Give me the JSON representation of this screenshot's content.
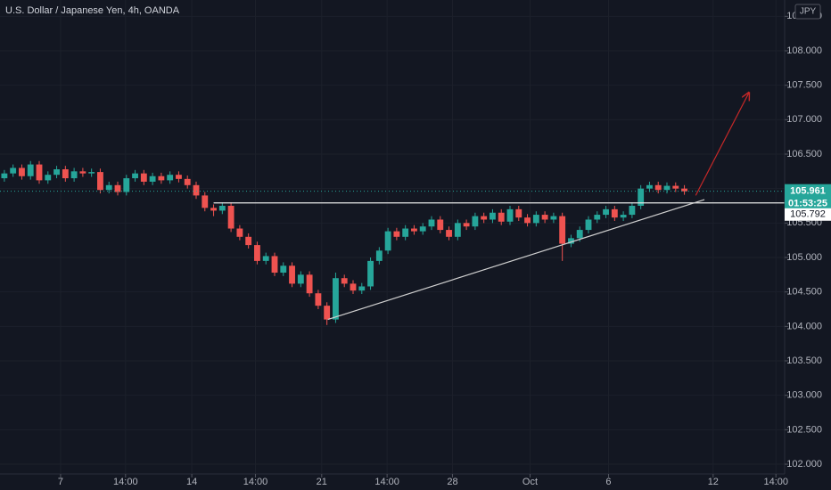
{
  "chart_data": {
    "type": "candlestick",
    "title": "U.S. Dollar / Japanese Yen, 4h, OANDA",
    "currency": "JPY",
    "up_color": "#26a69a",
    "down_color": "#ef5350",
    "grid": true,
    "xlim": [
      -0.5,
      89.5
    ],
    "xticks": [
      {
        "value": 6.45,
        "label": "7"
      },
      {
        "value": 13.9,
        "label": "14:00"
      },
      {
        "value": 21.5,
        "label": "14"
      },
      {
        "value": 28.8,
        "label": "14:00"
      },
      {
        "value": 36.4,
        "label": "21"
      },
      {
        "value": 43.9,
        "label": "14:00"
      },
      {
        "value": 51.4,
        "label": "28"
      },
      {
        "value": 60.3,
        "label": "Oct"
      },
      {
        "value": 69.3,
        "label": "6"
      },
      {
        "value": 81.3,
        "label": "12"
      },
      {
        "value": 88.5,
        "label": "14:00"
      }
    ],
    "ylim": [
      101.858,
      108.737
    ],
    "yticks": [
      {
        "value": 102,
        "label": "102.000"
      },
      {
        "value": 102.5,
        "label": "102.500"
      },
      {
        "value": 103,
        "label": "103.000"
      },
      {
        "value": 103.5,
        "label": "103.500"
      },
      {
        "value": 104,
        "label": "104.000"
      },
      {
        "value": 104.5,
        "label": "104.500"
      },
      {
        "value": 105,
        "label": "105.000"
      },
      {
        "value": 105.5,
        "label": "105.500"
      },
      {
        "value": 106,
        "label": "106.000"
      },
      {
        "value": 106.5,
        "label": "106.500"
      },
      {
        "value": 107,
        "label": "107.000"
      },
      {
        "value": 107.5,
        "label": "107.500"
      },
      {
        "value": 108,
        "label": "108.000"
      },
      {
        "value": 108.5,
        "label": "108.500"
      }
    ],
    "open": [
      106.15,
      106.22,
      106.3,
      106.18,
      106.35,
      106.12,
      106.2,
      106.28,
      106.15,
      106.25,
      106.22,
      106.24,
      105.98,
      106.05,
      105.95,
      106.15,
      106.22,
      106.1,
      106.18,
      106.12,
      106.2,
      106.14,
      106.05,
      105.9,
      105.72,
      105.68,
      105.75,
      105.42,
      105.3,
      105.18,
      104.95,
      105.02,
      104.78,
      104.88,
      104.62,
      104.75,
      104.48,
      104.3,
      104.1,
      104.7,
      104.62,
      104.52,
      104.58,
      104.95,
      105.1,
      105.38,
      105.3,
      105.42,
      105.38,
      105.45,
      105.55,
      105.4,
      105.3,
      105.5,
      105.45,
      105.6,
      105.55,
      105.65,
      105.52,
      105.7,
      105.58,
      105.5,
      105.62,
      105.55,
      105.6,
      105.2,
      105.28,
      105.4,
      105.55,
      105.62,
      105.7,
      105.58,
      105.62,
      105.75,
      106.0,
      106.05,
      105.98,
      106.04,
      106.0
    ],
    "high": [
      106.27,
      106.35,
      106.35,
      106.4,
      106.4,
      106.25,
      106.33,
      106.33,
      106.3,
      106.3,
      106.29,
      106.29,
      106.1,
      106.1,
      106.2,
      106.27,
      106.27,
      106.23,
      106.23,
      106.25,
      106.25,
      106.19,
      106.1,
      105.95,
      105.77,
      105.8,
      105.8,
      105.47,
      105.35,
      105.23,
      105.07,
      105.07,
      104.93,
      104.93,
      104.8,
      104.8,
      104.53,
      104.35,
      104.78,
      104.75,
      104.67,
      104.63,
      105.0,
      105.15,
      105.43,
      105.43,
      105.47,
      105.47,
      105.5,
      105.6,
      105.6,
      105.45,
      105.55,
      105.55,
      105.65,
      105.65,
      105.7,
      105.7,
      105.75,
      105.75,
      105.63,
      105.67,
      105.67,
      105.65,
      105.65,
      105.33,
      105.45,
      105.6,
      105.67,
      105.75,
      105.75,
      105.67,
      105.8,
      106.05,
      106.1,
      106.1,
      106.09,
      106.09,
      106.05
    ],
    "low": [
      106.1,
      106.17,
      106.13,
      106.13,
      106.07,
      106.07,
      106.15,
      106.1,
      106.1,
      106.17,
      106.17,
      105.93,
      105.93,
      105.9,
      105.9,
      106.1,
      106.05,
      106.05,
      106.07,
      106.07,
      106.09,
      106.0,
      105.85,
      105.67,
      105.6,
      105.63,
      105.37,
      105.25,
      105.13,
      104.9,
      104.9,
      104.73,
      104.73,
      104.57,
      104.57,
      104.43,
      104.25,
      104.02,
      104.05,
      104.57,
      104.47,
      104.47,
      104.53,
      104.9,
      105.05,
      105.25,
      105.25,
      105.33,
      105.33,
      105.4,
      105.35,
      105.25,
      105.25,
      105.4,
      105.4,
      105.5,
      105.5,
      105.47,
      105.47,
      105.53,
      105.45,
      105.45,
      105.5,
      105.5,
      104.95,
      105.15,
      105.23,
      105.35,
      105.5,
      105.57,
      105.53,
      105.53,
      105.57,
      105.7,
      105.95,
      105.93,
      105.93,
      105.95,
      105.91
    ],
    "close": [
      106.22,
      106.3,
      106.18,
      106.35,
      106.12,
      106.2,
      106.28,
      106.15,
      106.25,
      106.22,
      106.24,
      105.98,
      106.05,
      105.95,
      106.15,
      106.22,
      106.1,
      106.18,
      106.12,
      106.2,
      106.14,
      106.05,
      105.9,
      105.72,
      105.68,
      105.75,
      105.42,
      105.3,
      105.18,
      104.95,
      105.02,
      104.78,
      104.88,
      104.62,
      104.75,
      104.48,
      104.3,
      104.1,
      104.7,
      104.62,
      104.52,
      104.58,
      104.95,
      105.1,
      105.38,
      105.3,
      105.42,
      105.38,
      105.45,
      105.55,
      105.4,
      105.3,
      105.5,
      105.45,
      105.6,
      105.55,
      105.65,
      105.52,
      105.7,
      105.58,
      105.5,
      105.62,
      105.55,
      105.6,
      105.2,
      105.28,
      105.4,
      105.55,
      105.62,
      105.7,
      105.58,
      105.62,
      105.75,
      106.0,
      106.05,
      105.98,
      106.04,
      106.0,
      105.96
    ],
    "last_price": 105.961,
    "countdown": "01:53:25",
    "level_price": 105.792,
    "trendlines": [
      {
        "x": [
          24,
          89.5
        ],
        "y": [
          105.792,
          105.792
        ],
        "color": "#e8e8e8"
      },
      {
        "x": [
          37.1,
          80.3
        ],
        "y": [
          104.1,
          105.84
        ],
        "color": "#d0d0d0"
      },
      {
        "x": [
          79.3,
          85.4
        ],
        "y": [
          105.9,
          107.39
        ],
        "color": "#c62828",
        "arrow": true
      }
    ]
  }
}
